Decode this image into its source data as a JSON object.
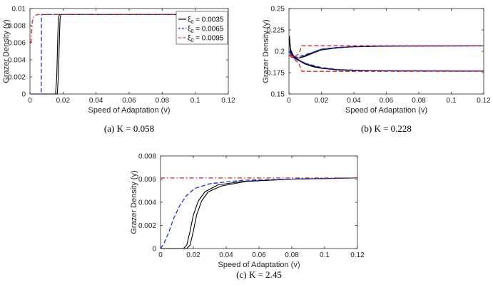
{
  "chart_data": [
    {
      "id": "a",
      "type": "line",
      "caption": "(a)  K = 0.058",
      "xlabel": "Speed of Adaptation (v)",
      "ylabel": "Grazer Density (y)",
      "xlim": [
        0,
        0.12
      ],
      "ylim": [
        0,
        0.01
      ],
      "xticks": [
        0,
        0.02,
        0.04,
        0.06,
        0.08,
        0.1,
        0.12
      ],
      "xtick_labels": [
        "0",
        "0.02",
        "0.04",
        "0.06",
        "0.08",
        "0.1",
        "0.12"
      ],
      "yticks": [
        0,
        0.002,
        0.004,
        0.006,
        0.008,
        0.01
      ],
      "ytick_labels": [
        "0",
        "0.002",
        "0.004",
        "0.006",
        "0.008",
        "0.01"
      ],
      "legend": {
        "placement": "top-right",
        "entries": [
          {
            "symbol": "ξ",
            "sub": "0",
            "text": " = 0.0035",
            "color": "#000000",
            "dash": "solid"
          },
          {
            "symbol": "ξ",
            "sub": "0",
            "text": " = 0.0065",
            "color": "#1f2fd6",
            "dash": "dashed"
          },
          {
            "symbol": "ξ",
            "sub": "0",
            "text": " = 0.0095",
            "color": "#d62728",
            "dash": "dashdot"
          }
        ]
      },
      "series": [
        {
          "name": "ξ0 = 0.0035 (upper)",
          "color": "#000000",
          "dash": "solid",
          "points": [
            [
              0,
              0
            ],
            [
              0.0155,
              0
            ],
            [
              0.0162,
              0.002
            ],
            [
              0.0168,
              0.0065
            ],
            [
              0.0172,
              0.0088
            ],
            [
              0.0178,
              0.0093
            ],
            [
              0.12,
              0.0093
            ]
          ]
        },
        {
          "name": "ξ0 = 0.0035 (lower)",
          "color": "#000000",
          "dash": "solid",
          "points": [
            [
              0,
              0
            ],
            [
              0.0165,
              0
            ],
            [
              0.0172,
              0.002
            ],
            [
              0.0178,
              0.0065
            ],
            [
              0.0182,
              0.0088
            ],
            [
              0.0188,
              0.0093
            ],
            [
              0.12,
              0.0093
            ]
          ]
        },
        {
          "name": "ξ0 = 0.0065",
          "color": "#1f2fd6",
          "dash": "dashed",
          "points": [
            [
              0,
              0
            ],
            [
              0.0068,
              0
            ],
            [
              0.0069,
              0.005
            ],
            [
              0.007,
              0.0093
            ],
            [
              0.12,
              0.0093
            ]
          ]
        },
        {
          "name": "ξ0 = 0.0095",
          "color": "#d62728",
          "dash": "dashdot",
          "points": [
            [
              0,
              0.0061
            ],
            [
              0.0007,
              0.0061
            ],
            [
              0.0014,
              0.0085
            ],
            [
              0.0028,
              0.0092
            ],
            [
              0.005,
              0.0093
            ],
            [
              0.12,
              0.0093
            ]
          ]
        }
      ]
    },
    {
      "id": "b",
      "type": "line",
      "caption": "(b)  K = 0.228",
      "xlabel": "Speed of Adaptation (v)",
      "ylabel": "Grazer Density (y)",
      "xlim": [
        0,
        0.12
      ],
      "ylim": [
        0.15,
        0.25
      ],
      "xticks": [
        0,
        0.02,
        0.04,
        0.06,
        0.08,
        0.1,
        0.12
      ],
      "xtick_labels": [
        "0",
        "0.02",
        "0.04",
        "0.06",
        "0.08",
        "0.1",
        "0.12"
      ],
      "yticks": [
        0.15,
        0.175,
        0.2,
        0.225,
        0.25
      ],
      "ytick_labels": [
        "0.15",
        "0.175",
        "0.2",
        "0.225",
        "0.25"
      ],
      "series": [
        {
          "name": "ξ0 = 0.0035 upper",
          "color": "#000000",
          "dash": "solid",
          "points": [
            [
              0.0003,
              0.218
            ],
            [
              0.001,
              0.202
            ],
            [
              0.003,
              0.194
            ],
            [
              0.006,
              0.192
            ],
            [
              0.01,
              0.194
            ],
            [
              0.015,
              0.198
            ],
            [
              0.02,
              0.2015
            ],
            [
              0.03,
              0.204
            ],
            [
              0.04,
              0.2052
            ],
            [
              0.06,
              0.206
            ],
            [
              0.12,
              0.2063
            ]
          ]
        },
        {
          "name": "ξ0 = 0.0035 upper b",
          "color": "#000000",
          "dash": "solid",
          "points": [
            [
              0.0003,
              0.214
            ],
            [
              0.001,
              0.2
            ],
            [
              0.003,
              0.193
            ],
            [
              0.006,
              0.192
            ],
            [
              0.01,
              0.195
            ],
            [
              0.015,
              0.199
            ],
            [
              0.02,
              0.2025
            ],
            [
              0.03,
              0.2045
            ],
            [
              0.04,
              0.2055
            ],
            [
              0.06,
              0.2062
            ],
            [
              0.12,
              0.2065
            ]
          ]
        },
        {
          "name": "ξ0 = 0.0035 lower",
          "color": "#000000",
          "dash": "solid",
          "points": [
            [
              0.0003,
              0.212
            ],
            [
              0.001,
              0.2
            ],
            [
              0.003,
              0.193
            ],
            [
              0.006,
              0.19
            ],
            [
              0.01,
              0.186
            ],
            [
              0.015,
              0.1825
            ],
            [
              0.02,
              0.1805
            ],
            [
              0.03,
              0.1785
            ],
            [
              0.04,
              0.1777
            ],
            [
              0.06,
              0.1772
            ],
            [
              0.12,
              0.177
            ]
          ]
        },
        {
          "name": "ξ0 = 0.0035 lower b",
          "color": "#000000",
          "dash": "solid",
          "points": [
            [
              0.0003,
              0.21
            ],
            [
              0.001,
              0.198
            ],
            [
              0.003,
              0.192
            ],
            [
              0.006,
              0.189
            ],
            [
              0.01,
              0.185
            ],
            [
              0.015,
              0.1818
            ],
            [
              0.02,
              0.18
            ],
            [
              0.03,
              0.1782
            ],
            [
              0.04,
              0.1775
            ],
            [
              0.06,
              0.177
            ],
            [
              0.12,
              0.1768
            ]
          ]
        },
        {
          "name": "ξ0 = 0.0065 upper",
          "color": "#1f2fd6",
          "dash": "dashed",
          "points": [
            [
              0.0003,
              0.2
            ],
            [
              0.002,
              0.195
            ],
            [
              0.005,
              0.193
            ],
            [
              0.01,
              0.196
            ],
            [
              0.02,
              0.202
            ],
            [
              0.03,
              0.2045
            ],
            [
              0.05,
              0.2058
            ],
            [
              0.12,
              0.2063
            ]
          ]
        },
        {
          "name": "ξ0 = 0.0065 lower",
          "color": "#1f2fd6",
          "dash": "dashed",
          "points": [
            [
              0.0003,
              0.199
            ],
            [
              0.002,
              0.194
            ],
            [
              0.005,
              0.19
            ],
            [
              0.01,
              0.186
            ],
            [
              0.02,
              0.181
            ],
            [
              0.03,
              0.1787
            ],
            [
              0.05,
              0.1774
            ],
            [
              0.12,
              0.177
            ]
          ]
        },
        {
          "name": "ξ0 = 0.0095 upper",
          "color": "#d62728",
          "dash": "dashed",
          "points": [
            [
              0.0003,
              0.196
            ],
            [
              0.003,
              0.193
            ],
            [
              0.006,
              0.197
            ],
            [
              0.008,
              0.2065
            ],
            [
              0.12,
              0.2065
            ]
          ]
        },
        {
          "name": "ξ0 = 0.0095 lower",
          "color": "#d62728",
          "dash": "dashed",
          "points": [
            [
              0.0003,
              0.195
            ],
            [
              0.003,
              0.191
            ],
            [
              0.006,
              0.186
            ],
            [
              0.008,
              0.1765
            ],
            [
              0.12,
              0.1765
            ]
          ]
        }
      ]
    },
    {
      "id": "c",
      "type": "line",
      "caption": "(c)  K = 2.45",
      "xlabel": "Speed of Adaptation (v)",
      "ylabel": "Grazer Density (y)",
      "xlim": [
        0,
        0.12
      ],
      "ylim": [
        0,
        0.008
      ],
      "xticks": [
        0,
        0.02,
        0.04,
        0.06,
        0.08,
        0.1,
        0.12
      ],
      "xtick_labels": [
        "0",
        "0.02",
        "0.04",
        "0.06",
        "0.08",
        "0.1",
        "0.12"
      ],
      "yticks": [
        0,
        0.002,
        0.004,
        0.006,
        0.008
      ],
      "ytick_labels": [
        "0",
        "0.002",
        "0.004",
        "0.006",
        "0.008"
      ],
      "series": [
        {
          "name": "ξ0 = 0.0035 (a)",
          "color": "#000000",
          "dash": "solid",
          "points": [
            [
              0,
              0
            ],
            [
              0.014,
              0
            ],
            [
              0.016,
              0.0003
            ],
            [
              0.018,
              0.0015
            ],
            [
              0.02,
              0.0029
            ],
            [
              0.023,
              0.0041
            ],
            [
              0.027,
              0.0049
            ],
            [
              0.035,
              0.0055
            ],
            [
              0.05,
              0.0058
            ],
            [
              0.08,
              0.006
            ],
            [
              0.12,
              0.0061
            ]
          ]
        },
        {
          "name": "ξ0 = 0.0035 (b)",
          "color": "#000000",
          "dash": "solid",
          "points": [
            [
              0,
              0
            ],
            [
              0.016,
              0
            ],
            [
              0.018,
              0.0003
            ],
            [
              0.02,
              0.0015
            ],
            [
              0.022,
              0.0029
            ],
            [
              0.025,
              0.0041
            ],
            [
              0.029,
              0.0049
            ],
            [
              0.037,
              0.0054
            ],
            [
              0.052,
              0.0058
            ],
            [
              0.08,
              0.006
            ],
            [
              0.12,
              0.0061
            ]
          ]
        },
        {
          "name": "ξ0 = 0.0065",
          "color": "#1f2fd6",
          "dash": "dashed",
          "points": [
            [
              0,
              0
            ],
            [
              0.002,
              0.0004
            ],
            [
              0.005,
              0.0014
            ],
            [
              0.008,
              0.0026
            ],
            [
              0.012,
              0.0038
            ],
            [
              0.016,
              0.0046
            ],
            [
              0.021,
              0.0052
            ],
            [
              0.03,
              0.0056
            ],
            [
              0.05,
              0.0059
            ],
            [
              0.08,
              0.006
            ],
            [
              0.12,
              0.0061
            ]
          ]
        },
        {
          "name": "ξ0 = 0.0095",
          "color": "#d62728",
          "dash": "dashdot",
          "points": [
            [
              0,
              0.0061
            ],
            [
              0.12,
              0.0061
            ]
          ]
        }
      ]
    }
  ]
}
